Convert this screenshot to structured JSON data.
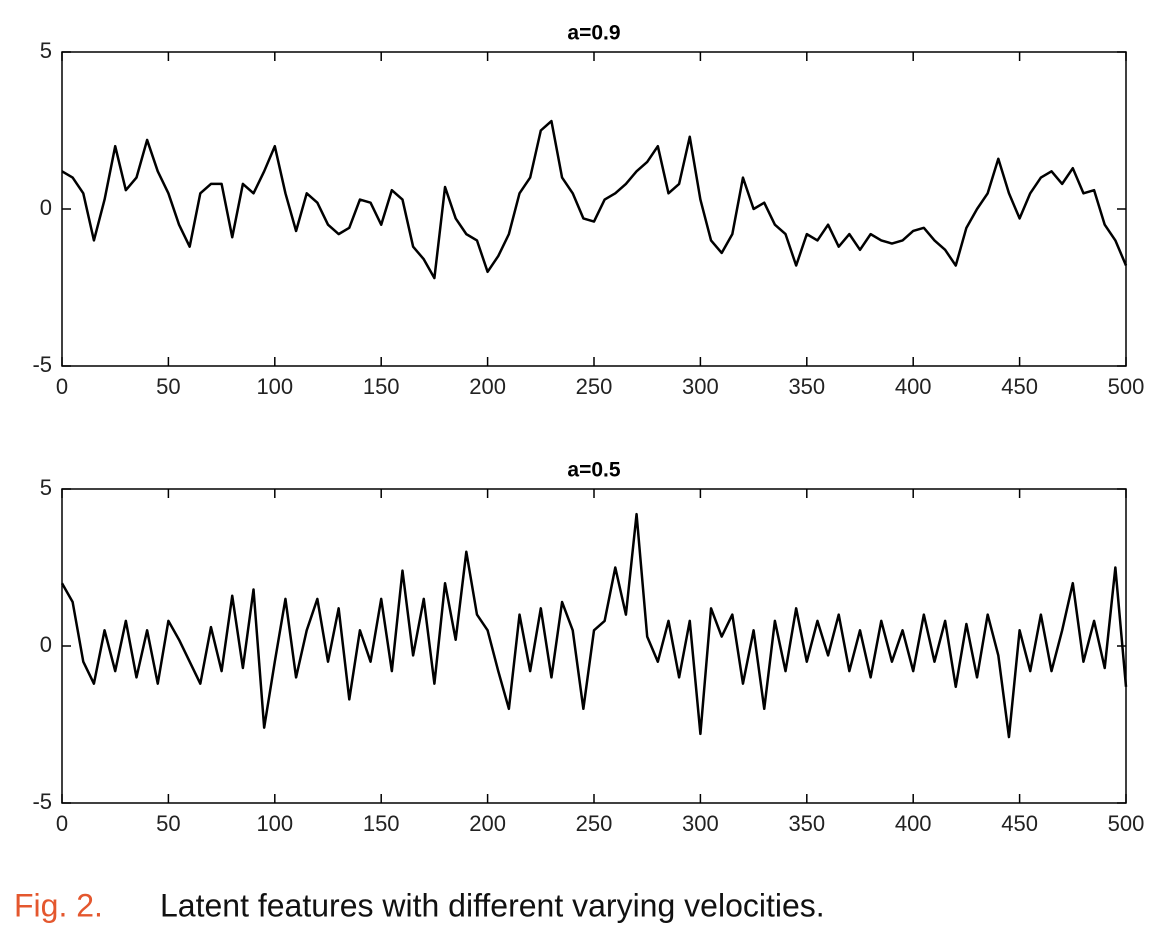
{
  "chart_data": [
    {
      "type": "line",
      "title": "a=0.9",
      "color": "#000000",
      "xlim": [
        0,
        500
      ],
      "ylim": [
        -5,
        5
      ],
      "xticks": [
        0,
        50,
        100,
        150,
        200,
        250,
        300,
        350,
        400,
        450,
        500
      ],
      "yticks": [
        -5,
        0,
        5
      ],
      "x": [
        0,
        5,
        10,
        15,
        20,
        25,
        30,
        35,
        40,
        45,
        50,
        55,
        60,
        65,
        70,
        75,
        80,
        85,
        90,
        95,
        100,
        105,
        110,
        115,
        120,
        125,
        130,
        135,
        140,
        145,
        150,
        155,
        160,
        165,
        170,
        175,
        180,
        185,
        190,
        195,
        200,
        205,
        210,
        215,
        220,
        225,
        230,
        235,
        240,
        245,
        250,
        255,
        260,
        265,
        270,
        275,
        280,
        285,
        290,
        295,
        300,
        305,
        310,
        315,
        320,
        325,
        330,
        335,
        340,
        345,
        350,
        355,
        360,
        365,
        370,
        375,
        380,
        385,
        390,
        395,
        400,
        405,
        410,
        415,
        420,
        425,
        430,
        435,
        440,
        445,
        450,
        455,
        460,
        465,
        470,
        475,
        480,
        485,
        490,
        495,
        500
      ],
      "values": [
        1.2,
        1.0,
        0.5,
        -1.0,
        0.3,
        2.0,
        0.6,
        1.0,
        2.2,
        1.2,
        0.5,
        -0.5,
        -1.2,
        0.5,
        0.8,
        0.8,
        -0.9,
        0.8,
        0.5,
        1.2,
        2.0,
        0.5,
        -0.7,
        0.5,
        0.2,
        -0.5,
        -0.8,
        -0.6,
        0.3,
        0.2,
        -0.5,
        0.6,
        0.3,
        -1.2,
        -1.6,
        -2.2,
        0.7,
        -0.3,
        -0.8,
        -1.0,
        -2.0,
        -1.5,
        -0.8,
        0.5,
        1.0,
        2.5,
        2.8,
        1.0,
        0.5,
        -0.3,
        -0.4,
        0.3,
        0.5,
        0.8,
        1.2,
        1.5,
        2.0,
        0.5,
        0.8,
        2.3,
        0.3,
        -1.0,
        -1.4,
        -0.8,
        1.0,
        0.0,
        0.2,
        -0.5,
        -0.8,
        -1.8,
        -0.8,
        -1.0,
        -0.5,
        -1.2,
        -0.8,
        -1.3,
        -0.8,
        -1.0,
        -1.1,
        -1.0,
        -0.7,
        -0.6,
        -1.0,
        -1.3,
        -1.8,
        -0.6,
        0.0,
        0.5,
        1.6,
        0.5,
        -0.3,
        0.5,
        1.0,
        1.2,
        0.8,
        1.3,
        0.5,
        0.6,
        -0.5,
        -1.0,
        -1.8
      ]
    },
    {
      "type": "line",
      "title": "a=0.5",
      "color": "#000000",
      "xlim": [
        0,
        500
      ],
      "ylim": [
        -5,
        5
      ],
      "xticks": [
        0,
        50,
        100,
        150,
        200,
        250,
        300,
        350,
        400,
        450,
        500
      ],
      "yticks": [
        -5,
        0,
        5
      ],
      "x": [
        0,
        5,
        10,
        15,
        20,
        25,
        30,
        35,
        40,
        45,
        50,
        55,
        60,
        65,
        70,
        75,
        80,
        85,
        90,
        95,
        100,
        105,
        110,
        115,
        120,
        125,
        130,
        135,
        140,
        145,
        150,
        155,
        160,
        165,
        170,
        175,
        180,
        185,
        190,
        195,
        200,
        205,
        210,
        215,
        220,
        225,
        230,
        235,
        240,
        245,
        250,
        255,
        260,
        265,
        270,
        275,
        280,
        285,
        290,
        295,
        300,
        305,
        310,
        315,
        320,
        325,
        330,
        335,
        340,
        345,
        350,
        355,
        360,
        365,
        370,
        375,
        380,
        385,
        390,
        395,
        400,
        405,
        410,
        415,
        420,
        425,
        430,
        435,
        440,
        445,
        450,
        455,
        460,
        465,
        470,
        475,
        480,
        485,
        490,
        495,
        500
      ],
      "values": [
        2.0,
        1.4,
        -0.5,
        -1.2,
        0.5,
        -0.8,
        0.8,
        -1.0,
        0.5,
        -1.2,
        0.8,
        0.2,
        -0.5,
        -1.2,
        0.6,
        -0.8,
        1.6,
        -0.7,
        1.8,
        -2.6,
        -0.5,
        1.5,
        -1.0,
        0.5,
        1.5,
        -0.5,
        1.2,
        -1.7,
        0.5,
        -0.5,
        1.5,
        -0.8,
        2.4,
        -0.3,
        1.5,
        -1.2,
        2.0,
        0.2,
        3.0,
        1.0,
        0.5,
        -0.8,
        -2.0,
        1.0,
        -0.8,
        1.2,
        -1.0,
        1.4,
        0.5,
        -2.0,
        0.5,
        0.8,
        2.5,
        1.0,
        4.2,
        0.3,
        -0.5,
        0.8,
        -1.0,
        0.8,
        -2.8,
        1.2,
        0.3,
        1.0,
        -1.2,
        0.5,
        -2.0,
        0.8,
        -0.8,
        1.2,
        -0.5,
        0.8,
        -0.3,
        1.0,
        -0.8,
        0.5,
        -1.0,
        0.8,
        -0.5,
        0.5,
        -0.8,
        1.0,
        -0.5,
        0.8,
        -1.3,
        0.7,
        -1.0,
        1.0,
        -0.3,
        -2.9,
        0.5,
        -0.8,
        1.0,
        -0.8,
        0.5,
        2.0,
        -0.5,
        0.8,
        -0.7,
        2.5,
        -1.3
      ]
    }
  ],
  "caption": {
    "label": "Fig. 2.",
    "text": "Latent features with different varying velocities."
  }
}
